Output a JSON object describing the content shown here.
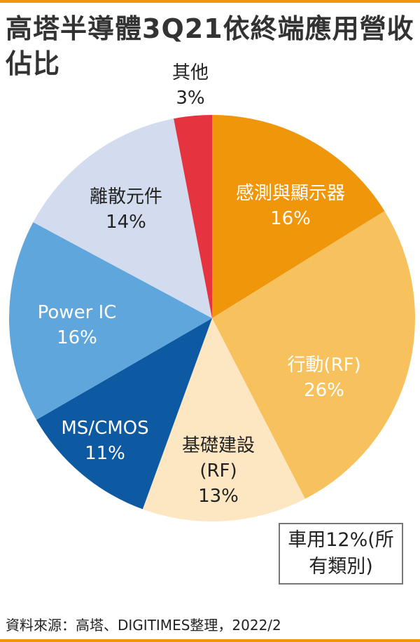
{
  "chart_data": {
    "type": "pie",
    "title": "高塔半導體3Q21依終端應用營收佔比",
    "categories": [
      "感測與顯示器",
      "行動(RF)",
      "基礎建設(RF)",
      "MS/CMOS",
      "Power IC",
      "離散元件",
      "其他"
    ],
    "values": [
      16,
      26,
      13,
      11,
      16,
      14,
      3
    ],
    "value_labels": [
      "16%",
      "26%",
      "13%",
      "11%",
      "16%",
      "14%",
      "3%"
    ],
    "colors": [
      "#f0960a",
      "#f7c25e",
      "#fde7c2",
      "#0d5aa2",
      "#5fa6dd",
      "#d3dcef",
      "#e5333f"
    ],
    "annotation": "車用12%(所有類別)",
    "source": "資料來源：高塔、DIGITIMES整理，2022/2"
  }
}
